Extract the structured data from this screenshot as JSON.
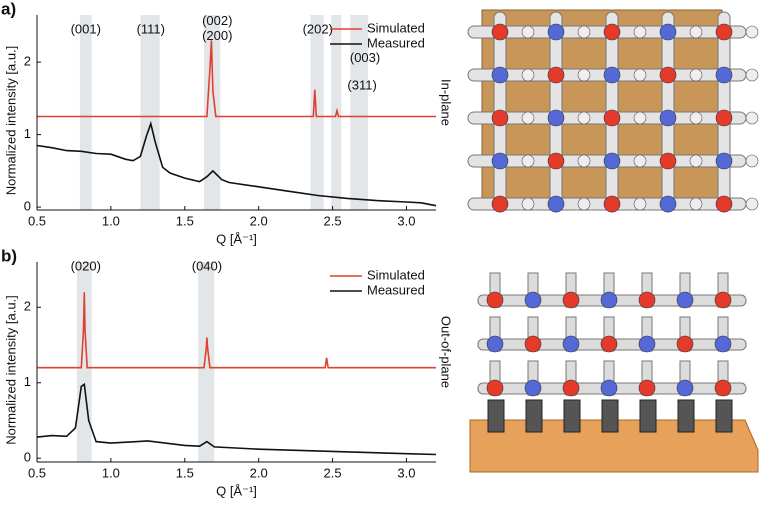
{
  "chart_data": [
    {
      "type": "line",
      "panel_label": "a)",
      "side_label": "In-plane",
      "xlabel": "Q [Å⁻¹]",
      "ylabel": "Normalized intensity [a.u.]",
      "xlim": [
        0.5,
        3.2
      ],
      "ylim": [
        -0.04,
        2.65
      ],
      "xticks": [
        0.5,
        {
          "value": 1,
          "label": "1.0"
        },
        1.5,
        {
          "value": 2,
          "label": "2.0"
        },
        2.5,
        {
          "value": 3,
          "label": "3.0"
        }
      ],
      "yticks": [
        0,
        1,
        2
      ],
      "bands": [
        [
          0.79,
          0.87
        ],
        [
          1.2,
          1.33
        ],
        [
          1.63,
          1.74
        ],
        [
          2.35,
          2.44
        ],
        [
          2.49,
          2.56
        ],
        [
          2.62,
          2.74
        ]
      ],
      "annotations": [
        {
          "text": "(001)",
          "x": 0.83,
          "y": 2.44
        },
        {
          "text": "(111)",
          "x": 1.27,
          "y": 2.44
        },
        {
          "text": "(002)",
          "x": 1.72,
          "y": 2.56
        },
        {
          "text": "(200)",
          "x": 1.72,
          "y": 2.35
        },
        {
          "text": "(202)",
          "x": 2.4,
          "y": 2.44
        },
        {
          "text": "(003)",
          "x": 2.72,
          "y": 2.05
        },
        {
          "text": "(311)",
          "x": 2.7,
          "y": 1.67
        }
      ],
      "series": [
        {
          "name": "Simulated",
          "color": "#e0402f",
          "x": [
            0.5,
            1.65,
            1.67,
            1.68,
            1.69,
            1.71,
            2.37,
            2.38,
            2.39,
            2.52,
            2.53,
            2.54,
            3.2
          ],
          "values": [
            1.25,
            1.25,
            1.9,
            2.3,
            1.6,
            1.25,
            1.25,
            1.62,
            1.25,
            1.25,
            1.33,
            1.25,
            1.25
          ]
        },
        {
          "name": "Measured",
          "color": "#111111",
          "x": [
            0.5,
            0.6,
            0.7,
            0.8,
            0.9,
            1.0,
            1.1,
            1.15,
            1.2,
            1.24,
            1.27,
            1.3,
            1.35,
            1.4,
            1.5,
            1.6,
            1.65,
            1.69,
            1.75,
            1.8,
            2.0,
            2.2,
            2.4,
            2.6,
            2.8,
            3.0,
            3.1,
            3.2
          ],
          "values": [
            0.85,
            0.82,
            0.78,
            0.77,
            0.74,
            0.73,
            0.66,
            0.64,
            0.7,
            0.98,
            1.15,
            0.9,
            0.55,
            0.47,
            0.4,
            0.35,
            0.42,
            0.5,
            0.38,
            0.34,
            0.28,
            0.22,
            0.16,
            0.12,
            0.09,
            0.07,
            0.06,
            0.02
          ]
        }
      ]
    },
    {
      "type": "line",
      "panel_label": "b)",
      "side_label": "Out-of-plane",
      "xlabel": "Q [Å⁻¹]",
      "ylabel": "Normalized intensity [a.u.]",
      "xlim": [
        0.5,
        3.2
      ],
      "ylim": [
        -0.05,
        2.6
      ],
      "xticks": [
        0.5,
        {
          "value": 1,
          "label": "1.0"
        },
        1.5,
        {
          "value": 2,
          "label": "2.0"
        },
        2.5,
        {
          "value": 3,
          "label": "3.0"
        }
      ],
      "yticks": [
        0,
        1,
        2
      ],
      "bands": [
        [
          0.77,
          0.87
        ],
        [
          1.59,
          1.7
        ]
      ],
      "annotations": [
        {
          "text": "(020)",
          "x": 0.83,
          "y": 2.53
        },
        {
          "text": "(040)",
          "x": 1.65,
          "y": 2.53
        }
      ],
      "series": [
        {
          "name": "Simulated",
          "color": "#e0402f",
          "x": [
            0.5,
            0.8,
            0.815,
            0.82,
            0.825,
            0.84,
            1.63,
            1.645,
            1.65,
            1.655,
            1.67,
            2.45,
            2.46,
            2.47,
            3.2
          ],
          "values": [
            1.2,
            1.2,
            1.7,
            2.2,
            1.7,
            1.2,
            1.2,
            1.45,
            1.6,
            1.45,
            1.2,
            1.2,
            1.33,
            1.2,
            1.2
          ]
        },
        {
          "name": "Measured",
          "color": "#111111",
          "x": [
            0.5,
            0.6,
            0.7,
            0.76,
            0.8,
            0.82,
            0.85,
            0.9,
            1.0,
            1.25,
            1.5,
            1.6,
            1.65,
            1.7,
            2.0,
            2.5,
            3.0,
            3.2
          ],
          "values": [
            0.28,
            0.3,
            0.29,
            0.4,
            0.95,
            0.98,
            0.5,
            0.22,
            0.2,
            0.23,
            0.17,
            0.16,
            0.22,
            0.15,
            0.12,
            0.09,
            0.06,
            0.05
          ]
        }
      ]
    }
  ]
}
